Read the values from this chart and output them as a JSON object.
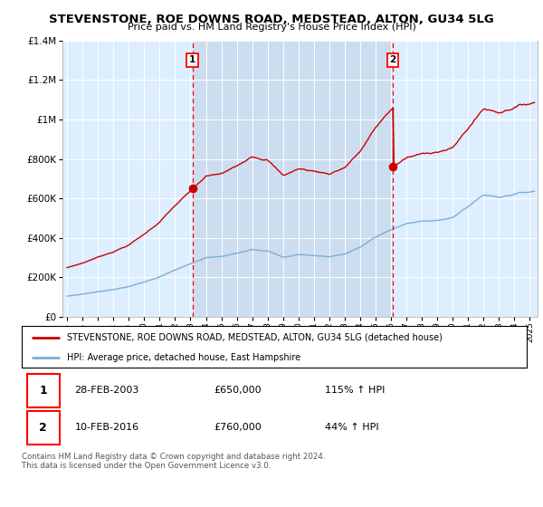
{
  "title": "STEVENSTONE, ROE DOWNS ROAD, MEDSTEAD, ALTON, GU34 5LG",
  "subtitle": "Price paid vs. HM Land Registry's House Price Index (HPI)",
  "legend_line1": "STEVENSTONE, ROE DOWNS ROAD, MEDSTEAD, ALTON, GU34 5LG (detached house)",
  "legend_line2": "HPI: Average price, detached house, East Hampshire",
  "sale1_date": "28-FEB-2003",
  "sale1_price": 650000,
  "sale1_hpi": "115% ↑ HPI",
  "sale2_date": "10-FEB-2016",
  "sale2_price": 760000,
  "sale2_hpi": "44% ↑ HPI",
  "footer": "Contains HM Land Registry data © Crown copyright and database right 2024.\nThis data is licensed under the Open Government Licence v3.0.",
  "red_color": "#cc0000",
  "blue_color": "#7bafd4",
  "background_color": "#ddeeff",
  "shade_color": "#ccddf0",
  "sale1_x": 2003.12,
  "sale2_x": 2016.12,
  "ylim": [
    0,
    1400000
  ],
  "xlim_start": 1994.7,
  "xlim_end": 2025.5
}
